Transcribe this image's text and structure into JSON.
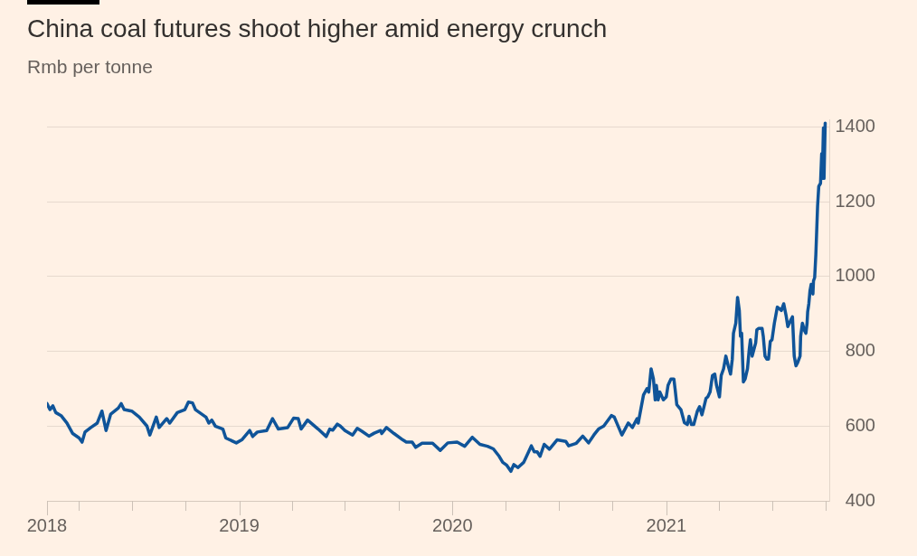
{
  "chart_data": {
    "type": "line",
    "title": "China coal futures shoot higher amid energy crunch",
    "subtitle": "Rmb per tonne",
    "x": [
      "2018-02-06",
      "2018-02-11",
      "2018-02-16",
      "2018-02-21",
      "2018-03-02",
      "2018-03-12",
      "2018-03-22",
      "2018-04-02",
      "2018-04-07",
      "2018-04-12",
      "2018-04-22",
      "2018-05-03",
      "2018-05-11",
      "2018-05-18",
      "2018-05-26",
      "2018-06-08",
      "2018-06-13",
      "2018-06-18",
      "2018-07-01",
      "2018-07-14",
      "2018-07-27",
      "2018-08-01",
      "2018-08-12",
      "2018-08-17",
      "2018-08-30",
      "2018-09-04",
      "2018-09-17",
      "2018-09-30",
      "2018-10-06",
      "2018-10-13",
      "2018-10-18",
      "2018-11-05",
      "2018-11-10",
      "2018-11-15",
      "2018-11-21",
      "2018-12-04",
      "2018-12-09",
      "2018-12-27",
      "2019-01-06",
      "2019-01-19",
      "2019-01-24",
      "2019-02-01",
      "2019-02-17",
      "2019-02-27",
      "2019-03-09",
      "2019-03-25",
      "2019-04-04",
      "2019-04-12",
      "2019-04-17",
      "2019-04-28",
      "2019-05-16",
      "2019-05-30",
      "2019-06-05",
      "2019-06-10",
      "2019-06-18",
      "2019-06-23",
      "2019-07-01",
      "2019-07-14",
      "2019-07-22",
      "2019-07-30",
      "2019-08-11",
      "2019-08-20",
      "2019-08-31",
      "2019-09-02",
      "2019-09-10",
      "2019-09-23",
      "2019-10-08",
      "2019-10-14",
      "2019-10-24",
      "2019-10-30",
      "2019-11-10",
      "2019-11-28",
      "2019-12-11",
      "2019-12-24",
      "2020-01-09",
      "2020-01-22",
      "2020-02-04",
      "2020-02-17",
      "2020-03-01",
      "2020-03-11",
      "2020-03-21",
      "2020-03-27",
      "2020-04-03",
      "2020-04-10",
      "2020-04-15",
      "2020-04-22",
      "2020-05-02",
      "2020-05-15",
      "2020-05-20",
      "2020-05-25",
      "2020-05-30",
      "2020-06-06",
      "2020-06-15",
      "2020-06-28",
      "2020-07-13",
      "2020-07-18",
      "2020-07-31",
      "2020-08-11",
      "2020-08-21",
      "2020-08-30",
      "2020-09-07",
      "2020-09-16",
      "2020-09-29",
      "2020-10-04",
      "2020-10-17",
      "2020-10-28",
      "2020-11-04",
      "2020-11-12",
      "2020-11-14",
      "2020-11-23",
      "2020-11-29",
      "2020-12-02",
      "2020-12-06",
      "2020-12-10",
      "2020-12-13",
      "2020-12-15",
      "2020-12-18",
      "2020-12-21",
      "2020-12-27",
      "2021-01-01",
      "2021-01-04",
      "2021-01-09",
      "2021-01-14",
      "2021-01-16",
      "2021-01-19",
      "2021-01-26",
      "2021-02-01",
      "2021-02-06",
      "2021-02-09",
      "2021-02-13",
      "2021-02-17",
      "2021-02-23",
      "2021-02-27",
      "2021-03-03",
      "2021-03-06",
      "2021-03-10",
      "2021-03-13",
      "2021-03-17",
      "2021-03-21",
      "2021-03-25",
      "2021-03-28",
      "2021-04-02",
      "2021-04-05",
      "2021-04-09",
      "2021-04-13",
      "2021-04-17",
      "2021-04-21",
      "2021-04-24",
      "2021-04-26",
      "2021-04-30",
      "2021-05-03",
      "2021-05-06",
      "2021-05-08",
      "2021-05-10",
      "2021-05-13",
      "2021-05-16",
      "2021-05-20",
      "2021-05-23",
      "2021-05-25",
      "2021-05-28",
      "2021-05-31",
      "2021-06-03",
      "2021-06-05",
      "2021-06-08",
      "2021-06-14",
      "2021-06-16",
      "2021-06-19",
      "2021-06-22",
      "2021-06-25",
      "2021-06-28",
      "2021-07-01",
      "2021-07-05",
      "2021-07-07",
      "2021-07-10",
      "2021-07-17",
      "2021-07-21",
      "2021-07-25",
      "2021-07-28",
      "2021-08-02",
      "2021-08-05",
      "2021-08-08",
      "2021-08-11",
      "2021-08-14",
      "2021-08-18",
      "2021-08-19",
      "2021-08-22",
      "2021-08-25",
      "2021-08-28",
      "2021-08-30",
      "2021-08-31",
      "2021-09-02",
      "2021-09-04",
      "2021-09-06",
      "2021-09-09",
      "2021-09-10",
      "2021-09-12",
      "2021-09-14",
      "2021-09-17",
      "2021-09-19",
      "2021-09-22",
      "2021-09-24",
      "2021-09-25",
      "2021-09-27",
      "2021-09-28",
      "2021-09-30"
    ],
    "series": [
      {
        "color": "#0f5499",
        "values": [
          660,
          644,
          654,
          636,
          628,
          608,
          580,
          568,
          557,
          584,
          596,
          608,
          640,
          588,
          632,
          648,
          660,
          644,
          640,
          624,
          600,
          576,
          624,
          596,
          620,
          608,
          636,
          644,
          664,
          662,
          644,
          624,
          608,
          616,
          600,
          592,
          568,
          555,
          564,
          588,
          572,
          584,
          588,
          620,
          592,
          596,
          621,
          620,
          592,
          616,
          592,
          572,
          592,
          589,
          605,
          600,
          588,
          576,
          594,
          586,
          573,
          581,
          588,
          580,
          596,
          580,
          563,
          557,
          557,
          543,
          554,
          554,
          535,
          555,
          557,
          546,
          570,
          551,
          546,
          539,
          519,
          503,
          495,
          479,
          497,
          489,
          503,
          547,
          531,
          531,
          519,
          551,
          538,
          563,
          559,
          547,
          554,
          573,
          555,
          576,
          592,
          600,
          628,
          624,
          576,
          608,
          596,
          620,
          608,
          683,
          700,
          691,
          753,
          726,
          670,
          709,
          670,
          691,
          670,
          678,
          709,
          726,
          726,
          700,
          657,
          644,
          609,
          604,
          626,
          604,
          604,
          639,
          652,
          630,
          648,
          674,
          678,
          691,
          735,
          739,
          709,
          678,
          735,
          753,
          787,
          761,
          739,
          779,
          848,
          875,
          944,
          909,
          840,
          848,
          718,
          726,
          753,
          805,
          831,
          787,
          805,
          822,
          857,
          861,
          861,
          840,
          787,
          779,
          779,
          826,
          831,
          875,
          892,
          918,
          909,
          927,
          896,
          866,
          883,
          892,
          787,
          761,
          770,
          787,
          840,
          875,
          857,
          848,
          875,
          905,
          927,
          962,
          979,
          953,
          988,
          997,
          1058,
          1188,
          1241,
          1249,
          1328,
          1262,
          1397,
          1262,
          1410
        ]
      }
    ],
    "xlim": [
      "2018-02-06",
      "2021-10-07"
    ],
    "xticks": [
      {
        "value": "2018-02-06",
        "label": "2018"
      },
      {
        "value": "2018-04-01",
        "label": null
      },
      {
        "value": "2018-07-01",
        "label": null
      },
      {
        "value": "2018-10-01",
        "label": null
      },
      {
        "value": "2019-01-01",
        "label": "2019"
      },
      {
        "value": "2019-04-01",
        "label": null
      },
      {
        "value": "2019-07-01",
        "label": null
      },
      {
        "value": "2019-10-01",
        "label": null
      },
      {
        "value": "2020-01-01",
        "label": "2020"
      },
      {
        "value": "2020-04-01",
        "label": null
      },
      {
        "value": "2020-07-01",
        "label": null
      },
      {
        "value": "2020-10-01",
        "label": null
      },
      {
        "value": "2021-01-01",
        "label": "2021"
      },
      {
        "value": "2021-04-01",
        "label": null
      },
      {
        "value": "2021-07-01",
        "label": null
      },
      {
        "value": "2021-10-01",
        "label": null
      }
    ],
    "ylim": [
      400,
      1420
    ],
    "yticks": [
      400,
      600,
      800,
      1000,
      1200,
      1400
    ],
    "grid": "y"
  }
}
